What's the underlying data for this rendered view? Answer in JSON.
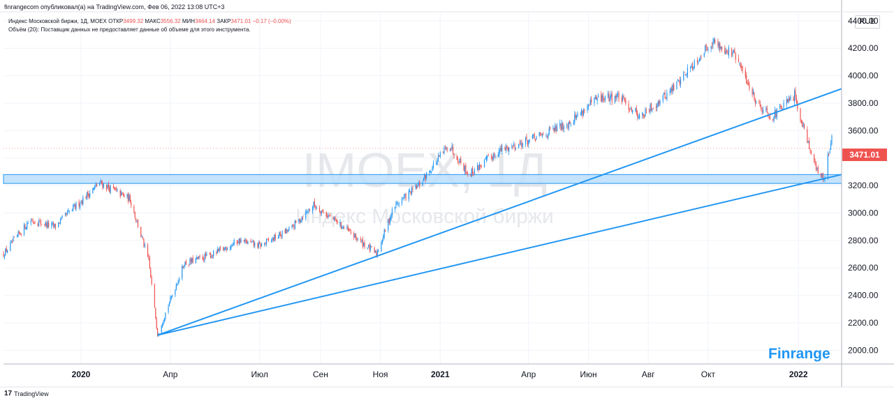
{
  "header": {
    "publish_line": "finrangecom опубликовал(а) на TradingView.com, Фев 06, 2022 13:08 UTC+3"
  },
  "legend": {
    "symbol": "Индекс Московской биржи, 1Д, MOEX",
    "open_label": "ОТКР",
    "open": "3499.32",
    "high_label": "МАКС",
    "high": "3556.32",
    "low_label": "МИН",
    "low": "3464.14",
    "close_label": "ЗАКР",
    "close": "3471.01",
    "change": "−0.17 (−0.00%)",
    "volume_note": "Объём (20): Поставщик данных не предоставляет данные об объеме для этого инструмента."
  },
  "watermark": {
    "ticker": "IMOEX, 1Д",
    "name": "Индекс Московской биржи"
  },
  "currency": "RUB",
  "last_price": "3471.01",
  "brand": "Finrange",
  "footer": {
    "logo": "17",
    "text": "TradingView"
  },
  "colors": {
    "up": "#2196f3",
    "down": "#ef5350",
    "trendline": "#2196f3",
    "zone_fill": "#bbdefb",
    "price_badge": "#ef5350",
    "brand": "#2196f3"
  },
  "chart_data": {
    "type": "candlestick",
    "ylim": [
      1900,
      4460
    ],
    "yticks": [
      2000,
      2200,
      2400,
      2600,
      2800,
      3000,
      3200,
      3400,
      3600,
      3800,
      4000,
      4200,
      4400
    ],
    "ytick_labels": [
      "2000.00",
      "2200.00",
      "2400.00",
      "2600.00",
      "2800.00",
      "3000.00",
      "3200.00",
      "3400.00",
      "3600.00",
      "3800.00",
      "4000.00",
      "4200.00",
      "4400.00"
    ],
    "x_start": "2019-10-14",
    "x_end": "2022-02-14",
    "xticks": [
      {
        "date": "2020-01-01",
        "label": "2020",
        "bold": true
      },
      {
        "date": "2020-04-01",
        "label": "Апр"
      },
      {
        "date": "2020-07-01",
        "label": "Июл"
      },
      {
        "date": "2020-09-01",
        "label": "Сен"
      },
      {
        "date": "2020-11-01",
        "label": "Ноя"
      },
      {
        "date": "2021-01-01",
        "label": "2021",
        "bold": true
      },
      {
        "date": "2021-04-01",
        "label": "Апр"
      },
      {
        "date": "2021-06-01",
        "label": "Июн"
      },
      {
        "date": "2021-08-01",
        "label": "Авг"
      },
      {
        "date": "2021-10-01",
        "label": "Окт"
      },
      {
        "date": "2022-01-01",
        "label": "2022",
        "bold": true
      }
    ],
    "price_path": [
      [
        "2019-10-14",
        2700
      ],
      [
        "2019-11-10",
        2950
      ],
      [
        "2019-12-05",
        2900
      ],
      [
        "2020-01-20",
        3220
      ],
      [
        "2020-02-20",
        3100
      ],
      [
        "2020-03-10",
        2650
      ],
      [
        "2020-03-19",
        2120
      ],
      [
        "2020-04-15",
        2630
      ],
      [
        "2020-05-15",
        2700
      ],
      [
        "2020-06-10",
        2800
      ],
      [
        "2020-07-01",
        2760
      ],
      [
        "2020-08-01",
        2880
      ],
      [
        "2020-08-25",
        3060
      ],
      [
        "2020-09-20",
        2920
      ],
      [
        "2020-10-28",
        2700
      ],
      [
        "2020-11-15",
        3050
      ],
      [
        "2020-12-10",
        3200
      ],
      [
        "2021-01-10",
        3500
      ],
      [
        "2021-01-30",
        3280
      ],
      [
        "2021-03-01",
        3450
      ],
      [
        "2021-04-10",
        3550
      ],
      [
        "2021-05-10",
        3650
      ],
      [
        "2021-06-10",
        3830
      ],
      [
        "2021-07-01",
        3850
      ],
      [
        "2021-07-25",
        3700
      ],
      [
        "2021-08-25",
        3900
      ],
      [
        "2021-10-05",
        4250
      ],
      [
        "2021-10-28",
        4150
      ],
      [
        "2021-11-20",
        3800
      ],
      [
        "2021-12-05",
        3700
      ],
      [
        "2021-12-28",
        3850
      ],
      [
        "2022-01-20",
        3300
      ],
      [
        "2022-01-27",
        3250
      ],
      [
        "2022-02-04",
        3560
      ],
      [
        "2022-02-06",
        3471
      ]
    ],
    "support_zone": [
      3215,
      3280
    ],
    "last_price": 3471.01,
    "trendlines": [
      {
        "start": [
          "2020-03-19",
          2110
        ],
        "end": [
          "2022-02-14",
          3905
        ]
      },
      {
        "start": [
          "2020-03-19",
          2110
        ],
        "end": [
          "2022-02-14",
          3280
        ]
      }
    ]
  }
}
